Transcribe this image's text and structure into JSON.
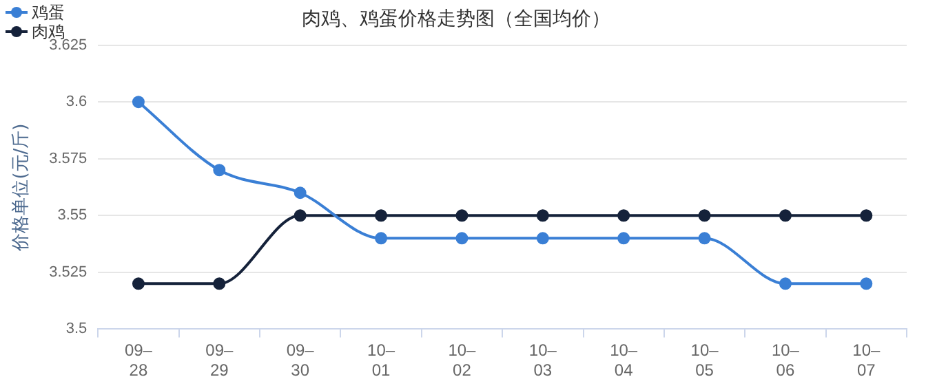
{
  "chart_data": {
    "type": "line",
    "title": "肉鸡、鸡蛋价格走势图（全国均价）",
    "ylabel": "价格单位(元/斤)",
    "categories": [
      "09–\n28",
      "09–\n29",
      "09–\n30",
      "10–\n01",
      "10–\n02",
      "10–\n03",
      "10–\n04",
      "10–\n05",
      "10–\n06",
      "10–\n07"
    ],
    "series": [
      {
        "name": "鸡蛋",
        "color": "#3a7fd5",
        "values": [
          3.6,
          3.57,
          3.56,
          3.54,
          3.54,
          3.54,
          3.54,
          3.54,
          3.52,
          3.52
        ]
      },
      {
        "name": "肉鸡",
        "color": "#15223a",
        "values": [
          3.52,
          3.52,
          3.55,
          3.55,
          3.55,
          3.55,
          3.55,
          3.55,
          3.55,
          3.55
        ]
      }
    ],
    "ylim": [
      3.5,
      3.625
    ],
    "yticks": [
      3.5,
      3.525,
      3.55,
      3.575,
      3.6,
      3.625
    ],
    "grid": "y",
    "legend": "top left",
    "marker": "circle"
  }
}
